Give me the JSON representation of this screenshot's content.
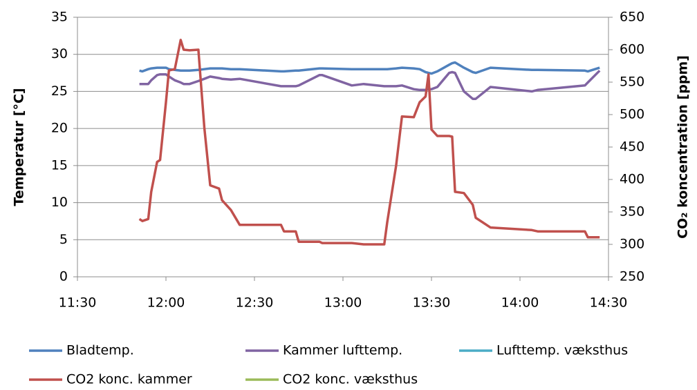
{
  "chart_data": {
    "type": "line",
    "x": [
      "11:51",
      "11:52",
      "11:54",
      "11:55",
      "11:57",
      "11:58",
      "12:00",
      "12:01",
      "12:03",
      "12:05",
      "12:06",
      "12:08",
      "12:11",
      "12:13",
      "12:15",
      "12:18",
      "12:19",
      "12:22",
      "12:25",
      "12:39",
      "12:40",
      "12:44",
      "12:45",
      "12:52",
      "12:53",
      "13:03",
      "13:07",
      "13:14",
      "13:15",
      "13:18",
      "13:20",
      "13:24",
      "13:26",
      "13:28",
      "13:29",
      "13:30",
      "13:32",
      "13:36",
      "13:37",
      "13:38",
      "13:41",
      "13:44",
      "13:45",
      "13:50",
      "14:04",
      "14:06",
      "14:22",
      "14:23",
      "14:27"
    ],
    "series": [
      {
        "name": "Bladtemp.",
        "color": "#4f81bd",
        "values": [
          27.8,
          27.7,
          28.0,
          28.1,
          28.2,
          28.2,
          28.2,
          28.0,
          27.9,
          27.8,
          27.8,
          27.8,
          27.9,
          28.0,
          28.1,
          28.1,
          28.1,
          28.0,
          28.0,
          27.7,
          27.7,
          27.8,
          27.8,
          28.1,
          28.1,
          28.0,
          28.0,
          28.0,
          28.0,
          28.1,
          28.2,
          28.1,
          28.0,
          27.6,
          27.5,
          27.4,
          27.7,
          28.6,
          28.8,
          28.9,
          28.2,
          27.6,
          27.5,
          28.2,
          27.9,
          27.9,
          27.8,
          27.7,
          28.2
        ]
      },
      {
        "name": "Kammer lufttemp.",
        "color": "#8064a2",
        "values": [
          26.0,
          26.0,
          26.0,
          26.5,
          27.2,
          27.3,
          27.3,
          27.0,
          26.5,
          26.2,
          26.0,
          26.0,
          26.4,
          26.7,
          27.0,
          26.8,
          26.7,
          26.6,
          26.7,
          25.7,
          25.7,
          25.7,
          25.8,
          27.2,
          27.2,
          25.8,
          26.0,
          25.7,
          25.7,
          25.7,
          25.8,
          25.3,
          25.2,
          25.2,
          25.3,
          25.3,
          25.6,
          27.5,
          27.6,
          27.5,
          25.0,
          24.0,
          24.0,
          25.6,
          25.0,
          25.2,
          25.8,
          26.2,
          27.8
        ]
      },
      {
        "name": "Lufttemp. væksthus",
        "color": "#4bacc6",
        "values": [
          null,
          null,
          null,
          null,
          null,
          null,
          null,
          null,
          null,
          null,
          null,
          null,
          null,
          null,
          null,
          null,
          null,
          null,
          null,
          null,
          null,
          null,
          null,
          null,
          null,
          null,
          null,
          null,
          null,
          null,
          null,
          null,
          null,
          null,
          null,
          null,
          null,
          null,
          null,
          null,
          null,
          null,
          null,
          null,
          null,
          null,
          null,
          null,
          null
        ]
      },
      {
        "name": "CO2 konc. kammer",
        "color": "#c0504d",
        "axis": "y2",
        "values": [
          339,
          336,
          339,
          381,
          427,
          430,
          519,
          568,
          570,
          615,
          600,
          599,
          600,
          480,
          391,
          386,
          368,
          353,
          330,
          330,
          320,
          320,
          304,
          304,
          302,
          302,
          300,
          300,
          334,
          421,
          497,
          496,
          519,
          528,
          562,
          477,
          467,
          467,
          466,
          381,
          379,
          361,
          341,
          326,
          322,
          320,
          320,
          311,
          311
        ]
      },
      {
        "name": "CO2 konc. væksthus",
        "color": "#9bbb59",
        "axis": "y2",
        "values": [
          null,
          null,
          null,
          null,
          null,
          null,
          null,
          null,
          null,
          null,
          null,
          null,
          null,
          null,
          null,
          null,
          null,
          null,
          null,
          null,
          null,
          null,
          null,
          null,
          null,
          null,
          null,
          null,
          null,
          null,
          null,
          null,
          null,
          null,
          null,
          null,
          null,
          null,
          null,
          null,
          null,
          null,
          null,
          null,
          null,
          null,
          null,
          null,
          null
        ]
      }
    ],
    "ylabel": "Temperatur [°C]",
    "y2label": "CO₂ koncentration [ppm]",
    "xlim": [
      "11:30",
      "14:30"
    ],
    "xticks": [
      "11:30",
      "12:00",
      "12:30",
      "13:00",
      "13:30",
      "14:00",
      "14:30"
    ],
    "ylim": [
      0,
      35
    ],
    "yticks": [
      0,
      5,
      10,
      15,
      20,
      25,
      30,
      35
    ],
    "y2lim": [
      250,
      650
    ],
    "y2ticks": [
      250,
      300,
      350,
      400,
      450,
      500,
      550,
      600,
      650
    ],
    "grid": true,
    "legend": "bottom"
  }
}
